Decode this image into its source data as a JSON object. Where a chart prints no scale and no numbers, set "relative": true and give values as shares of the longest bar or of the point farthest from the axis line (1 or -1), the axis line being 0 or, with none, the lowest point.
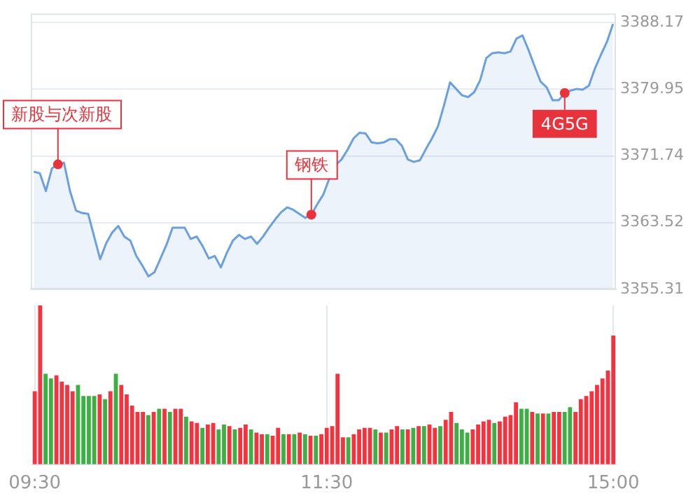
{
  "chart_data": [
    {
      "type": "area",
      "color": "#6a9fe0",
      "grid": true,
      "tick_labels": "y",
      "marker": "none",
      "categories": [
        null,
        null,
        null,
        null,
        null,
        null,
        null,
        null,
        null,
        null,
        null,
        null,
        null,
        null,
        null,
        null,
        null,
        null,
        null,
        null,
        null,
        null,
        null,
        null,
        null,
        null,
        null,
        null,
        null,
        null,
        null,
        null,
        null,
        null,
        null,
        null,
        null,
        null,
        null,
        null,
        null,
        null,
        null,
        null,
        null,
        null,
        null,
        null,
        null,
        null,
        null,
        null,
        null,
        null,
        null,
        null,
        null,
        null,
        null,
        null,
        null,
        null,
        null,
        null,
        null,
        null,
        null,
        null,
        null,
        null,
        null,
        null,
        null,
        null,
        null,
        null,
        null,
        null,
        null,
        null,
        null,
        null,
        null,
        null,
        null,
        null,
        null,
        null,
        null,
        null,
        null,
        null,
        null,
        null,
        null,
        null,
        null
      ],
      "values": [
        3369.8,
        3369.6,
        3367.4,
        3370.2,
        3370.7,
        3370.9,
        3367.4,
        3365.0,
        3364.7,
        3364.6,
        3361.8,
        3359.0,
        3361.0,
        3362.3,
        3363.1,
        3361.8,
        3361.3,
        3359.4,
        3358.2,
        3356.9,
        3357.4,
        3359.1,
        3360.8,
        3362.9,
        3362.9,
        3362.9,
        3361.5,
        3361.8,
        3360.6,
        3359.1,
        3359.4,
        3358.0,
        3359.8,
        3361.3,
        3362.0,
        3361.5,
        3361.8,
        3360.9,
        3361.8,
        3362.9,
        3363.9,
        3364.8,
        3365.4,
        3365.1,
        3364.6,
        3364.1,
        3364.5,
        3365.8,
        3367.0,
        3369.0,
        3370.6,
        3371.3,
        3372.5,
        3373.9,
        3374.6,
        3374.5,
        3373.4,
        3373.3,
        3373.4,
        3373.8,
        3373.8,
        3373.0,
        3371.3,
        3371.0,
        3371.2,
        3372.6,
        3373.9,
        3375.4,
        3378.0,
        3380.8,
        3380.0,
        3379.2,
        3379.0,
        3379.6,
        3381.1,
        3383.8,
        3384.4,
        3384.5,
        3384.4,
        3384.6,
        3386.2,
        3386.6,
        3384.8,
        3382.8,
        3380.9,
        3380.2,
        3378.6,
        3378.6,
        3379.5,
        3379.8,
        3380.0,
        3379.9,
        3380.4,
        3382.5,
        3384.2,
        3385.8,
        3388.0
      ],
      "ylim": [
        3355.31,
        3389.3
      ],
      "yticks": [
        3355.31,
        3363.52,
        3371.74,
        3379.95,
        3388.17
      ],
      "annotations": [
        {
          "text": "新股与次新股",
          "y": 3370.7
        },
        {
          "text": "钢铁",
          "y": 3364.5
        },
        {
          "text": "4G5G",
          "y": 3379.5
        }
      ]
    },
    {
      "type": "bar",
      "relative": true,
      "grid": "x",
      "tick_labels": "x",
      "categories": [
        "09:30",
        null,
        null,
        null,
        null,
        null,
        null,
        null,
        null,
        null,
        null,
        null,
        null,
        null,
        null,
        null,
        null,
        null,
        null,
        null,
        null,
        null,
        null,
        null,
        null,
        null,
        null,
        null,
        null,
        null,
        null,
        null,
        null,
        null,
        null,
        null,
        null,
        null,
        null,
        null,
        null,
        null,
        null,
        null,
        null,
        null,
        null,
        null,
        null,
        null,
        null,
        null,
        null,
        null,
        "11:30",
        null,
        null,
        null,
        null,
        null,
        null,
        null,
        null,
        null,
        null,
        null,
        null,
        null,
        null,
        null,
        null,
        null,
        null,
        null,
        null,
        null,
        null,
        null,
        null,
        null,
        null,
        null,
        null,
        null,
        null,
        null,
        null,
        null,
        null,
        null,
        null,
        null,
        null,
        null,
        null,
        null,
        null,
        null,
        null,
        null,
        null,
        null,
        null,
        null,
        null,
        null,
        null,
        "15:00"
      ],
      "values": [
        0.46,
        1.0,
        0.57,
        0.54,
        0.56,
        0.52,
        0.5,
        0.46,
        0.5,
        0.43,
        0.43,
        0.43,
        0.44,
        0.41,
        0.46,
        0.57,
        0.5,
        0.44,
        0.37,
        0.33,
        0.33,
        0.31,
        0.33,
        0.35,
        0.35,
        0.33,
        0.35,
        0.35,
        0.3,
        0.27,
        0.26,
        0.23,
        0.25,
        0.26,
        0.22,
        0.25,
        0.24,
        0.22,
        0.23,
        0.25,
        0.22,
        0.2,
        0.19,
        0.19,
        0.18,
        0.23,
        0.19,
        0.19,
        0.19,
        0.2,
        0.19,
        0.18,
        0.18,
        0.19,
        0.23,
        0.24,
        0.57,
        0.17,
        0.17,
        0.19,
        0.22,
        0.23,
        0.23,
        0.22,
        0.2,
        0.2,
        0.22,
        0.24,
        0.22,
        0.22,
        0.23,
        0.24,
        0.24,
        0.25,
        0.23,
        0.24,
        0.28,
        0.33,
        0.26,
        0.22,
        0.2,
        0.22,
        0.25,
        0.27,
        0.28,
        0.26,
        0.27,
        0.3,
        0.31,
        0.39,
        0.35,
        0.35,
        0.33,
        0.32,
        0.32,
        0.32,
        0.33,
        0.33,
        0.33,
        0.36,
        0.33,
        0.41,
        0.43,
        0.46,
        0.5,
        0.54,
        0.59,
        0.81
      ],
      "colors": [
        "#f5333f",
        "#f5333f",
        "#3cb043",
        "#3cb043",
        "#f5333f",
        "#f5333f",
        "#f5333f",
        "#f5333f",
        "#3cb043",
        "#3cb043",
        "#3cb043",
        "#3cb043",
        "#f5333f",
        "#3cb043",
        "#f5333f",
        "#3cb043",
        "#f5333f",
        "#f5333f",
        "#f5333f",
        "#f5333f",
        "#f5333f",
        "#3cb043",
        "#f5333f",
        "#3cb043",
        "#f5333f",
        "#3cb043",
        "#f5333f",
        "#f5333f",
        "#3cb043",
        "#f5333f",
        "#f5333f",
        "#3cb043",
        "#f5333f",
        "#f5333f",
        "#3cb043",
        "#3cb043",
        "#f5333f",
        "#3cb043",
        "#f5333f",
        "#f5333f",
        "#3cb043",
        "#f5333f",
        "#f5333f",
        "#3cb043",
        "#f5333f",
        "#f5333f",
        "#3cb043",
        "#f5333f",
        "#3cb043",
        "#f5333f",
        "#3cb043",
        "#f5333f",
        "#3cb043",
        "#f5333f",
        "#f5333f",
        "#f5333f",
        "#f5333f",
        "#f5333f",
        "#3cb043",
        "#f5333f",
        "#f5333f",
        "#f5333f",
        "#f5333f",
        "#3cb043",
        "#f5333f",
        "#3cb043",
        "#f5333f",
        "#f5333f",
        "#3cb043",
        "#f5333f",
        "#3cb043",
        "#f5333f",
        "#3cb043",
        "#f5333f",
        "#f5333f",
        "#3cb043",
        "#f5333f",
        "#f5333f",
        "#3cb043",
        "#3cb043",
        "#3cb043",
        "#f5333f",
        "#f5333f",
        "#f5333f",
        "#f5333f",
        "#3cb043",
        "#f5333f",
        "#f5333f",
        "#f5333f",
        "#f5333f",
        "#3cb043",
        "#3cb043",
        "#f5333f",
        "#3cb043",
        "#f5333f",
        "#3cb043",
        "#f5333f",
        "#f5333f",
        "#3cb043",
        "#3cb043",
        "#f5333f",
        "#f5333f",
        "#f5333f",
        "#f5333f",
        "#f5333f",
        "#f5333f",
        "#f5333f",
        "#f5333f"
      ]
    }
  ]
}
